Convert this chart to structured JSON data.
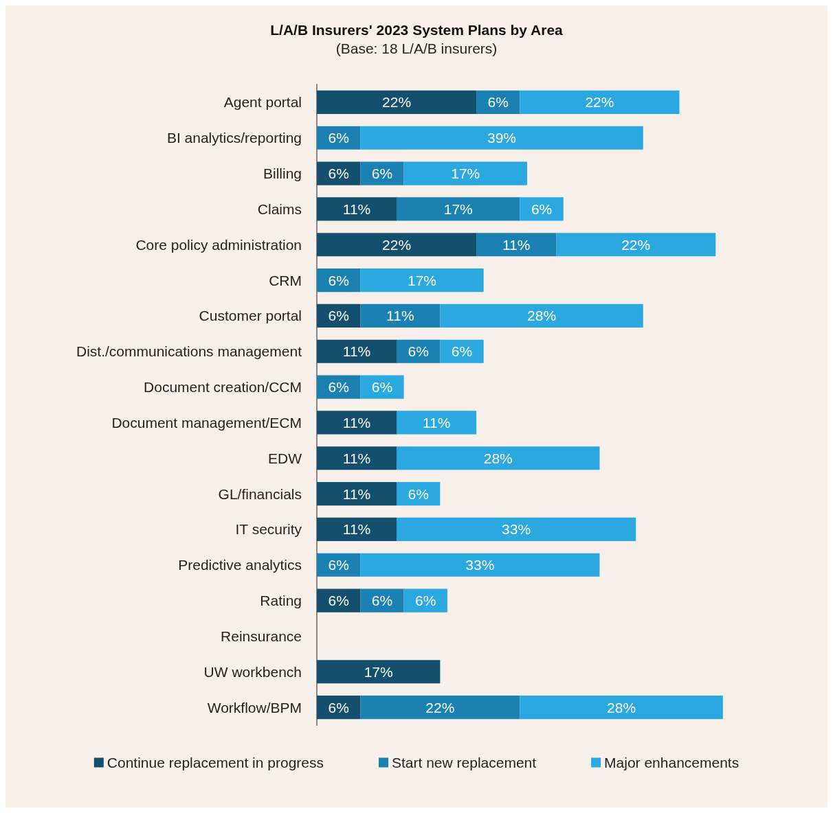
{
  "chart_data": {
    "type": "bar",
    "orientation": "horizontal",
    "stacked": true,
    "title": "L/A/B Insurers' 2023 System Plans by Area",
    "subtitle": "(Base: 18 L/A/B insurers)",
    "categories": [
      "Agent portal",
      "BI analytics/reporting",
      "Billing",
      "Claims",
      "Core policy administration",
      "CRM",
      "Customer portal",
      "Dist./communications management",
      "Document creation/CCM",
      "Document management/ECM",
      "EDW",
      "GL/financials",
      "IT security",
      "Predictive analytics",
      "Rating",
      "Reinsurance",
      "UW workbench",
      "Workflow/BPM"
    ],
    "series": [
      {
        "name": "Continue replacement in progress",
        "color": "#144f6d",
        "values": [
          22,
          null,
          6,
          11,
          22,
          null,
          6,
          11,
          null,
          11,
          11,
          11,
          11,
          null,
          6,
          null,
          17,
          6
        ],
        "value_labels": [
          "22%",
          null,
          "6%",
          "11%",
          "22%",
          null,
          "6%",
          "11%",
          null,
          "11%",
          "11%",
          "11%",
          "11%",
          null,
          "6%",
          null,
          "17%",
          "6%"
        ]
      },
      {
        "name": "Start new replacement",
        "color": "#1b80b2",
        "values": [
          6,
          6,
          6,
          17,
          11,
          6,
          11,
          6,
          6,
          null,
          null,
          null,
          null,
          6,
          6,
          null,
          null,
          22
        ],
        "value_labels": [
          "6%",
          "6%",
          "6%",
          "17%",
          "11%",
          "6%",
          "11%",
          "6%",
          "6%",
          null,
          null,
          null,
          null,
          "6%",
          "6%",
          null,
          null,
          "22%"
        ]
      },
      {
        "name": "Major enhancements",
        "color": "#2ba8e0",
        "values": [
          22,
          39,
          17,
          6,
          22,
          17,
          28,
          6,
          6,
          11,
          28,
          6,
          33,
          33,
          6,
          null,
          null,
          28
        ],
        "value_labels": [
          "22%",
          "39%",
          "17%",
          "6%",
          "22%",
          "17%",
          "28%",
          "6%",
          "6%",
          "11%",
          "28%",
          "6%",
          "33%",
          "33%",
          "6%",
          null,
          null,
          "28%"
        ]
      }
    ],
    "legend": "bottom"
  }
}
